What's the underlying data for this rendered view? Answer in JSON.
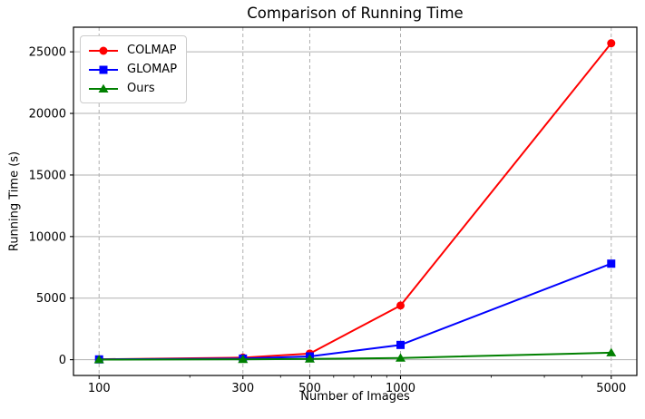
{
  "chart_data": {
    "type": "line",
    "title": "Comparison of Running Time",
    "xlabel": "Number of Images",
    "ylabel": "Running Time (s)",
    "xscale": "log",
    "x": [
      100,
      300,
      500,
      1000,
      5000
    ],
    "series": [
      {
        "name": "COLMAP",
        "color": "#ff0000",
        "marker": "circle",
        "values": [
          35,
          170,
          500,
          4400,
          25700
        ]
      },
      {
        "name": "GLOMAP",
        "color": "#0000ff",
        "marker": "square",
        "values": [
          25,
          90,
          270,
          1200,
          7800
        ]
      },
      {
        "name": "Ours",
        "color": "#008000",
        "marker": "triangle",
        "values": [
          10,
          30,
          60,
          140,
          570
        ]
      }
    ],
    "xticks": [
      100,
      300,
      500,
      1000,
      5000
    ],
    "xtick_labels": [
      "100",
      "300",
      "500",
      "1000",
      "5000"
    ],
    "minor_xticks": [
      200,
      400,
      600,
      700,
      800,
      900,
      2000,
      3000,
      4000
    ],
    "yticks": [
      0,
      5000,
      10000,
      15000,
      20000,
      25000
    ],
    "ytick_labels": [
      "0",
      "5000",
      "10000",
      "15000",
      "20000",
      "25000"
    ],
    "ylim": [
      -1280,
      27000
    ],
    "x_margin_fraction": 0.05,
    "grid": true,
    "grid_color": "#b0b0b0",
    "legend_position": "upper-left",
    "legend_entries": [
      "COLMAP",
      "GLOMAP",
      "Ours"
    ]
  }
}
